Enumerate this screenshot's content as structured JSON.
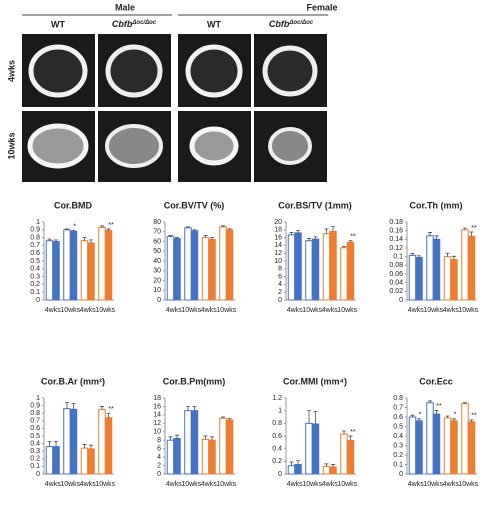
{
  "images": {
    "sexes": [
      "Male",
      "Female"
    ],
    "genotypes": [
      {
        "text": "WT"
      },
      {
        "text": "Cbfb",
        "sup": "Δoc/Δoc"
      }
    ],
    "ages": [
      "4wks",
      "10wks"
    ]
  },
  "chart_data": [
    {
      "type": "bar",
      "title": "Cor.BMD",
      "categories": [
        "4wks",
        "10wks",
        "4wks",
        "10wks"
      ],
      "colors": [
        "#4472c4",
        "#4472c4",
        "#ed7d31",
        "#ed7d31"
      ],
      "ylim": [
        0,
        1
      ],
      "yticks": [
        0,
        0.1,
        0.2,
        0.3,
        0.4,
        0.5,
        0.6,
        0.7,
        0.8,
        0.9,
        1
      ],
      "series": [
        {
          "hollow": true,
          "values": [
            0.76,
            0.9,
            0.76,
            0.93
          ],
          "errors": [
            0.02,
            0.01,
            0.04,
            0.02
          ]
        },
        {
          "hollow": false,
          "values": [
            0.75,
            0.88,
            0.73,
            0.89
          ],
          "errors": [
            0.02,
            0.01,
            0.04,
            0.02
          ]
        }
      ],
      "annotations": [
        {
          "text": "*",
          "category": 1,
          "series": 1
        },
        {
          "text": "**",
          "category": 3,
          "series": 1
        }
      ]
    },
    {
      "type": "bar",
      "title": "Cor.BV/TV (%)",
      "categories": [
        "4wks",
        "10wks",
        "4wks",
        "10wks"
      ],
      "colors": [
        "#4472c4",
        "#4472c4",
        "#ed7d31",
        "#ed7d31"
      ],
      "ylim": [
        0,
        80
      ],
      "yticks": [
        0,
        10,
        20,
        30,
        40,
        50,
        60,
        70,
        80
      ],
      "series": [
        {
          "hollow": true,
          "values": [
            65,
            74,
            64,
            75
          ],
          "errors": [
            1,
            1,
            2,
            1
          ]
        },
        {
          "hollow": false,
          "values": [
            63,
            71,
            62,
            72
          ],
          "errors": [
            1,
            1,
            2,
            1
          ]
        }
      ],
      "annotations": []
    },
    {
      "type": "bar",
      "title": "Cor.BS/TV (1mm)",
      "categories": [
        "4wks",
        "10wks",
        "4wks",
        "10wks"
      ],
      "colors": [
        "#4472c4",
        "#4472c4",
        "#ed7d31",
        "#ed7d31"
      ],
      "ylim": [
        0,
        20
      ],
      "yticks": [
        0,
        2,
        4,
        6,
        8,
        10,
        12,
        14,
        16,
        18,
        20
      ],
      "series": [
        {
          "hollow": true,
          "values": [
            16.7,
            15.2,
            17,
            13.4
          ],
          "errors": [
            0.6,
            0.6,
            1.2,
            0.3
          ]
        },
        {
          "hollow": false,
          "values": [
            17.2,
            15.6,
            17.6,
            14.8
          ],
          "errors": [
            0.6,
            0.6,
            1.2,
            0.4
          ]
        }
      ],
      "annotations": [
        {
          "text": "**",
          "category": 3,
          "series": 1
        }
      ]
    },
    {
      "type": "bar",
      "title": "Cor.Th (mm)",
      "categories": [
        "4wks",
        "10wks",
        "4wks",
        "10wks"
      ],
      "colors": [
        "#4472c4",
        "#4472c4",
        "#ed7d31",
        "#ed7d31"
      ],
      "ylim": [
        0,
        0.18
      ],
      "yticks": [
        0,
        0.02,
        0.04,
        0.06,
        0.08,
        0.1,
        0.12,
        0.14,
        0.16,
        0.18
      ],
      "series": [
        {
          "hollow": true,
          "values": [
            0.103,
            0.148,
            0.1,
            0.162
          ],
          "errors": [
            0.004,
            0.008,
            0.008,
            0.004
          ]
        },
        {
          "hollow": false,
          "values": [
            0.098,
            0.14,
            0.093,
            0.147
          ],
          "errors": [
            0.004,
            0.008,
            0.008,
            0.01
          ]
        }
      ],
      "annotations": [
        {
          "text": "**",
          "category": 3,
          "series": 1
        }
      ]
    },
    {
      "type": "bar",
      "title": "Cor.B.Ar (mm²)",
      "categories": [
        "4wks",
        "10wks",
        "4wks",
        "10wks"
      ],
      "colors": [
        "#4472c4",
        "#4472c4",
        "#ed7d31",
        "#ed7d31"
      ],
      "ylim": [
        0,
        1
      ],
      "yticks": [
        0,
        0.1,
        0.2,
        0.3,
        0.4,
        0.5,
        0.6,
        0.7,
        0.8,
        0.9,
        1
      ],
      "series": [
        {
          "hollow": true,
          "values": [
            0.36,
            0.86,
            0.34,
            0.85
          ],
          "errors": [
            0.07,
            0.08,
            0.05,
            0.04
          ]
        },
        {
          "hollow": false,
          "values": [
            0.36,
            0.85,
            0.33,
            0.74
          ],
          "errors": [
            0.07,
            0.08,
            0.05,
            0.06
          ]
        }
      ],
      "annotations": [
        {
          "text": "**",
          "category": 3,
          "series": 1
        }
      ]
    },
    {
      "type": "bar",
      "title": "Cor.B.Pm(mm)",
      "categories": [
        "4wks",
        "10wks",
        "4wks",
        "10wks"
      ],
      "colors": [
        "#4472c4",
        "#4472c4",
        "#ed7d31",
        "#ed7d31"
      ],
      "ylim": [
        0,
        18
      ],
      "yticks": [
        0,
        2,
        4,
        6,
        8,
        10,
        12,
        14,
        16,
        18
      ],
      "series": [
        {
          "hollow": true,
          "values": [
            8,
            15,
            8.2,
            13.2
          ],
          "errors": [
            0.8,
            1,
            0.8,
            0.3
          ]
        },
        {
          "hollow": false,
          "values": [
            8.4,
            15,
            8,
            12.8
          ],
          "errors": [
            0.8,
            1,
            0.8,
            0.3
          ]
        }
      ],
      "annotations": []
    },
    {
      "type": "bar",
      "title": "Cor.MMI (mm⁴)",
      "categories": [
        "4wks",
        "10wks",
        "4wks",
        "10wks"
      ],
      "colors": [
        "#4472c4",
        "#4472c4",
        "#ed7d31",
        "#ed7d31"
      ],
      "ylim": [
        0,
        1.2
      ],
      "yticks": [
        0,
        0.2,
        0.4,
        0.6,
        0.8,
        1,
        1.2
      ],
      "series": [
        {
          "hollow": true,
          "values": [
            0.13,
            0.8,
            0.12,
            0.63
          ],
          "errors": [
            0.06,
            0.2,
            0.04,
            0.05
          ]
        },
        {
          "hollow": false,
          "values": [
            0.15,
            0.79,
            0.11,
            0.53
          ],
          "errors": [
            0.06,
            0.2,
            0.04,
            0.07
          ]
        }
      ],
      "annotations": [
        {
          "text": "**",
          "category": 3,
          "series": 1
        }
      ]
    },
    {
      "type": "bar",
      "title": "Cor.Ecc",
      "categories": [
        "4wks",
        "10wks",
        "4wks",
        "10wks"
      ],
      "colors": [
        "#4472c4",
        "#4472c4",
        "#ed7d31",
        "#ed7d31"
      ],
      "ylim": [
        0,
        0.8
      ],
      "yticks": [
        0,
        0.1,
        0.2,
        0.3,
        0.4,
        0.5,
        0.6,
        0.7,
        0.8
      ],
      "series": [
        {
          "hollow": true,
          "values": [
            0.6,
            0.75,
            0.59,
            0.74
          ],
          "errors": [
            0.02,
            0.02,
            0.02,
            0.01
          ]
        },
        {
          "hollow": false,
          "values": [
            0.56,
            0.63,
            0.56,
            0.55
          ],
          "errors": [
            0.02,
            0.04,
            0.02,
            0.02
          ]
        }
      ],
      "annotations": [
        {
          "text": "*",
          "category": 0,
          "series": 1
        },
        {
          "text": "**",
          "category": 1,
          "series": 1
        },
        {
          "text": "*",
          "category": 2,
          "series": 1
        },
        {
          "text": "**",
          "category": 3,
          "series": 1
        }
      ]
    }
  ]
}
